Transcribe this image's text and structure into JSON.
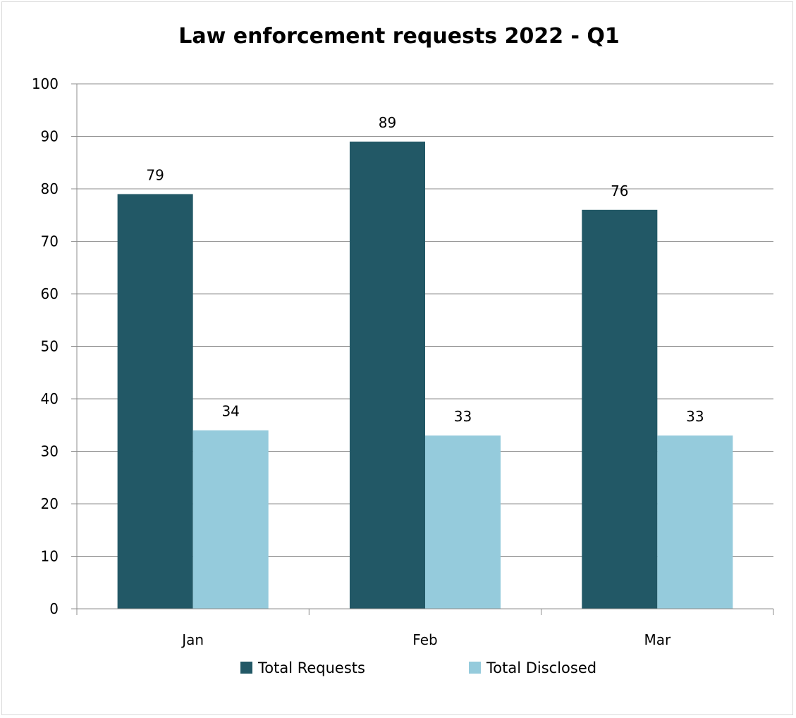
{
  "chart_data": {
    "type": "bar",
    "title": "Law enforcement requests  2022 - Q1",
    "xlabel": "",
    "ylabel": "",
    "categories": [
      "Jan",
      "Feb",
      "Mar"
    ],
    "series": [
      {
        "name": "Total Requests",
        "values": [
          79,
          89,
          76
        ],
        "color": "#225866"
      },
      {
        "name": "Total Disclosed",
        "values": [
          34,
          33,
          33
        ],
        "color": "#95cbdc"
      }
    ],
    "ylim": [
      0,
      100
    ],
    "yticks": [
      "0",
      "10",
      "20",
      "30",
      "40",
      "50",
      "60",
      "70",
      "80",
      "90",
      "100"
    ],
    "grid": true,
    "legend": "bottom",
    "data_labels": true
  }
}
